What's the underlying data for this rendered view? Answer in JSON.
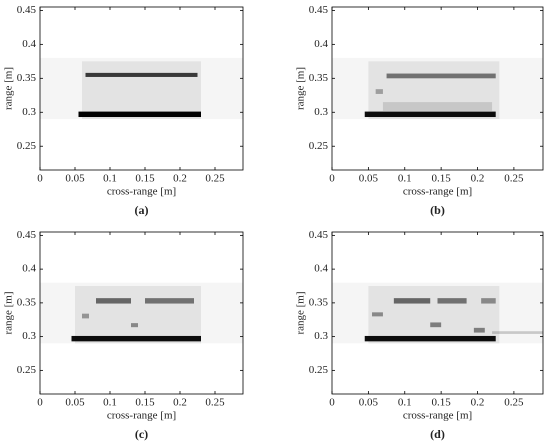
{
  "chart_data": [
    {
      "type": "heatmap",
      "xlabel": "cross-range [m]",
      "ylabel": "range [m]",
      "caption": "(a)",
      "xlim": [
        0,
        0.29
      ],
      "ylim": [
        0.215,
        0.455
      ],
      "xticks": [
        0,
        0.05,
        0.1,
        0.15,
        0.2,
        0.25
      ],
      "yticks": [
        0.25,
        0.3,
        0.35,
        0.4,
        0.45
      ],
      "features": [
        {
          "x": [
            0,
            0.29
          ],
          "y": [
            0.29,
            0.38
          ],
          "level": 0.04
        },
        {
          "x": [
            0.06,
            0.23
          ],
          "y": [
            0.29,
            0.375
          ],
          "level": 0.07
        },
        {
          "x": [
            0.065,
            0.225
          ],
          "y": [
            0.352,
            0.358
          ],
          "level": 0.75
        },
        {
          "x": [
            0.055,
            0.23
          ],
          "y": [
            0.293,
            0.301
          ],
          "level": 1
        }
      ]
    },
    {
      "type": "heatmap",
      "xlabel": "cross-range [m]",
      "ylabel": "range [m]",
      "caption": "(b)",
      "xlim": [
        0,
        0.29
      ],
      "ylim": [
        0.215,
        0.455
      ],
      "xticks": [
        0,
        0.05,
        0.1,
        0.15,
        0.2,
        0.25
      ],
      "yticks": [
        0.25,
        0.3,
        0.35,
        0.4,
        0.45
      ],
      "features": [
        {
          "x": [
            0,
            0.29
          ],
          "y": [
            0.29,
            0.38
          ],
          "level": 0.04
        },
        {
          "x": [
            0.05,
            0.23
          ],
          "y": [
            0.29,
            0.375
          ],
          "level": 0.07
        },
        {
          "x": [
            0.075,
            0.225
          ],
          "y": [
            0.35,
            0.357
          ],
          "level": 0.5
        },
        {
          "x": [
            0.06,
            0.07
          ],
          "y": [
            0.327,
            0.334
          ],
          "level": 0.3
        },
        {
          "x": [
            0.07,
            0.22
          ],
          "y": [
            0.302,
            0.315
          ],
          "level": 0.12
        },
        {
          "x": [
            0.045,
            0.225
          ],
          "y": [
            0.293,
            0.301
          ],
          "level": 0.95
        }
      ]
    },
    {
      "type": "heatmap",
      "xlabel": "cross-range [m]",
      "ylabel": "range [m]",
      "caption": "(c)",
      "xlim": [
        0,
        0.29
      ],
      "ylim": [
        0.215,
        0.455
      ],
      "xticks": [
        0,
        0.05,
        0.1,
        0.15,
        0.2,
        0.25
      ],
      "yticks": [
        0.25,
        0.3,
        0.35,
        0.4,
        0.45
      ],
      "features": [
        {
          "x": [
            0,
            0.29
          ],
          "y": [
            0.29,
            0.38
          ],
          "level": 0.04
        },
        {
          "x": [
            0.05,
            0.23
          ],
          "y": [
            0.29,
            0.375
          ],
          "level": 0.07
        },
        {
          "x": [
            0.08,
            0.13
          ],
          "y": [
            0.349,
            0.357
          ],
          "level": 0.55
        },
        {
          "x": [
            0.15,
            0.22
          ],
          "y": [
            0.349,
            0.357
          ],
          "level": 0.5
        },
        {
          "x": [
            0.06,
            0.07
          ],
          "y": [
            0.327,
            0.334
          ],
          "level": 0.35
        },
        {
          "x": [
            0.13,
            0.14
          ],
          "y": [
            0.314,
            0.32
          ],
          "level": 0.4
        },
        {
          "x": [
            0.045,
            0.23
          ],
          "y": [
            0.293,
            0.301
          ],
          "level": 0.95
        }
      ]
    },
    {
      "type": "heatmap",
      "xlabel": "cross-range [m]",
      "ylabel": "range [m]",
      "caption": "(d)",
      "xlim": [
        0,
        0.29
      ],
      "ylim": [
        0.215,
        0.455
      ],
      "xticks": [
        0,
        0.05,
        0.1,
        0.15,
        0.2,
        0.25
      ],
      "yticks": [
        0.25,
        0.3,
        0.35,
        0.4,
        0.45
      ],
      "features": [
        {
          "x": [
            0,
            0.29
          ],
          "y": [
            0.29,
            0.38
          ],
          "level": 0.04
        },
        {
          "x": [
            0.05,
            0.23
          ],
          "y": [
            0.29,
            0.375
          ],
          "level": 0.07
        },
        {
          "x": [
            0.085,
            0.135
          ],
          "y": [
            0.349,
            0.357
          ],
          "level": 0.55
        },
        {
          "x": [
            0.145,
            0.185
          ],
          "y": [
            0.349,
            0.357
          ],
          "level": 0.5
        },
        {
          "x": [
            0.205,
            0.225
          ],
          "y": [
            0.349,
            0.357
          ],
          "level": 0.4
        },
        {
          "x": [
            0.055,
            0.07
          ],
          "y": [
            0.33,
            0.336
          ],
          "level": 0.4
        },
        {
          "x": [
            0.135,
            0.15
          ],
          "y": [
            0.314,
            0.321
          ],
          "level": 0.45
        },
        {
          "x": [
            0.195,
            0.21
          ],
          "y": [
            0.306,
            0.313
          ],
          "level": 0.45
        },
        {
          "x": [
            0.22,
            0.29
          ],
          "y": [
            0.304,
            0.308
          ],
          "level": 0.18
        },
        {
          "x": [
            0.045,
            0.225
          ],
          "y": [
            0.293,
            0.301
          ],
          "level": 0.95
        }
      ]
    }
  ]
}
